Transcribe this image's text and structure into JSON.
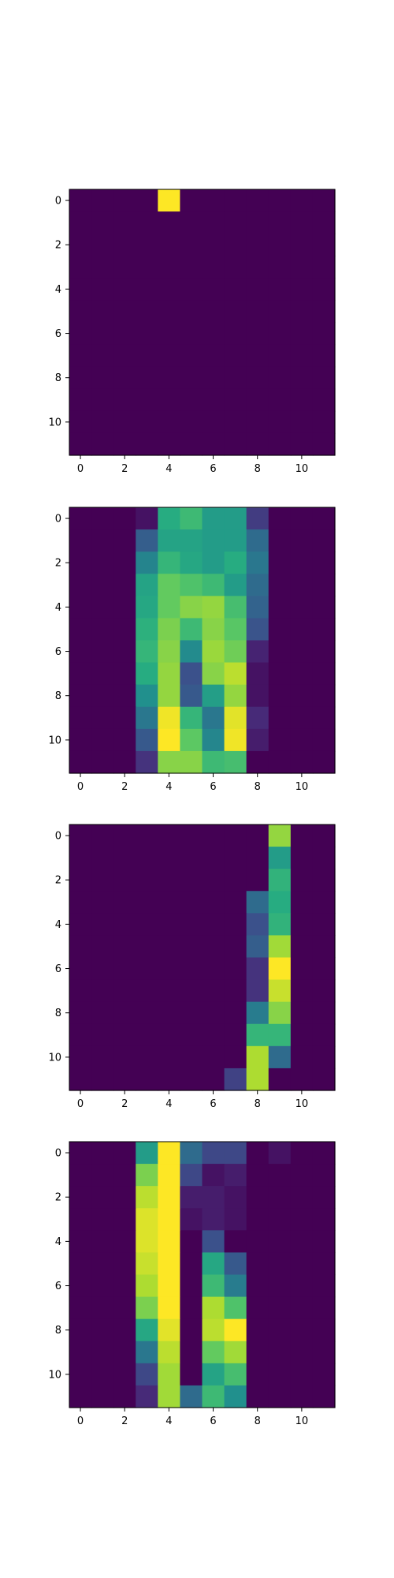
{
  "figure": {
    "background": "#ffffff"
  },
  "chart_data": [
    {
      "type": "heatmap",
      "colormap": "viridis",
      "value_range": [
        0,
        1
      ],
      "grid": false,
      "xlim": [
        -0.5,
        11.5
      ],
      "ylim": [
        11.5,
        -0.5
      ],
      "xticks": [
        0,
        2,
        4,
        6,
        8,
        10
      ],
      "yticks": [
        0,
        2,
        4,
        6,
        8,
        10
      ],
      "values": [
        [
          0,
          0,
          0,
          0,
          1,
          0,
          0,
          0,
          0,
          0,
          0,
          0
        ],
        [
          0,
          0,
          0,
          0,
          0,
          0,
          0,
          0,
          0,
          0,
          0,
          0
        ],
        [
          0,
          0,
          0,
          0,
          0,
          0,
          0,
          0,
          0,
          0,
          0,
          0
        ],
        [
          0,
          0,
          0,
          0,
          0,
          0,
          0,
          0,
          0,
          0,
          0,
          0
        ],
        [
          0,
          0,
          0,
          0,
          0,
          0,
          0,
          0,
          0,
          0,
          0,
          0
        ],
        [
          0,
          0,
          0,
          0,
          0,
          0,
          0,
          0,
          0,
          0,
          0,
          0
        ],
        [
          0,
          0,
          0,
          0,
          0,
          0,
          0,
          0,
          0,
          0,
          0,
          0
        ],
        [
          0,
          0,
          0,
          0,
          0,
          0,
          0,
          0,
          0,
          0,
          0,
          0
        ],
        [
          0,
          0,
          0,
          0,
          0,
          0,
          0,
          0,
          0,
          0,
          0,
          0
        ],
        [
          0,
          0,
          0,
          0,
          0,
          0,
          0,
          0,
          0,
          0,
          0,
          0
        ],
        [
          0,
          0,
          0,
          0,
          0,
          0,
          0,
          0,
          0,
          0,
          0,
          0
        ],
        [
          0,
          0,
          0,
          0,
          0,
          0,
          0,
          0,
          0,
          0,
          0,
          0
        ]
      ]
    },
    {
      "type": "heatmap",
      "colormap": "viridis",
      "value_range": [
        0,
        1
      ],
      "grid": false,
      "xlim": [
        -0.5,
        11.5
      ],
      "ylim": [
        11.5,
        -0.5
      ],
      "xticks": [
        0,
        2,
        4,
        6,
        8,
        10
      ],
      "yticks": [
        0,
        2,
        4,
        6,
        8,
        10
      ],
      "values": [
        [
          0,
          0,
          0,
          0.05,
          0.62,
          0.68,
          0.55,
          0.55,
          0.18,
          0,
          0,
          0
        ],
        [
          0,
          0,
          0,
          0.3,
          0.58,
          0.58,
          0.55,
          0.55,
          0.35,
          0,
          0,
          0
        ],
        [
          0,
          0,
          0,
          0.45,
          0.66,
          0.6,
          0.55,
          0.62,
          0.4,
          0,
          0,
          0
        ],
        [
          0,
          0,
          0,
          0.58,
          0.76,
          0.72,
          0.68,
          0.55,
          0.35,
          0,
          0,
          0
        ],
        [
          0,
          0,
          0,
          0.6,
          0.76,
          0.82,
          0.84,
          0.7,
          0.32,
          0,
          0,
          0
        ],
        [
          0,
          0,
          0,
          0.64,
          0.8,
          0.68,
          0.82,
          0.74,
          0.26,
          0,
          0,
          0
        ],
        [
          0,
          0,
          0,
          0.66,
          0.82,
          0.48,
          0.85,
          0.78,
          0.1,
          0,
          0,
          0
        ],
        [
          0,
          0,
          0,
          0.62,
          0.84,
          0.25,
          0.82,
          0.9,
          0.05,
          0,
          0,
          0
        ],
        [
          0,
          0,
          0,
          0.5,
          0.84,
          0.28,
          0.56,
          0.84,
          0.05,
          0,
          0,
          0
        ],
        [
          0,
          0,
          0,
          0.4,
          0.98,
          0.66,
          0.4,
          0.96,
          0.12,
          0,
          0,
          0
        ],
        [
          0,
          0,
          0,
          0.28,
          1.0,
          0.75,
          0.46,
          0.98,
          0.08,
          0,
          0,
          0
        ],
        [
          0,
          0,
          0,
          0.15,
          0.82,
          0.82,
          0.68,
          0.7,
          0,
          0,
          0,
          0
        ]
      ]
    },
    {
      "type": "heatmap",
      "colormap": "viridis",
      "value_range": [
        0,
        1
      ],
      "grid": false,
      "xlim": [
        -0.5,
        11.5
      ],
      "ylim": [
        11.5,
        -0.5
      ],
      "xticks": [
        0,
        2,
        4,
        6,
        8,
        10
      ],
      "yticks": [
        0,
        2,
        4,
        6,
        8,
        10
      ],
      "values": [
        [
          0,
          0,
          0,
          0,
          0,
          0,
          0,
          0,
          0,
          0.84,
          0,
          0
        ],
        [
          0,
          0,
          0,
          0,
          0,
          0,
          0,
          0,
          0,
          0.55,
          0,
          0
        ],
        [
          0,
          0,
          0,
          0,
          0,
          0,
          0,
          0,
          0,
          0.65,
          0,
          0
        ],
        [
          0,
          0,
          0,
          0,
          0,
          0,
          0,
          0,
          0.35,
          0.62,
          0,
          0
        ],
        [
          0,
          0,
          0,
          0,
          0,
          0,
          0,
          0,
          0.25,
          0.65,
          0,
          0
        ],
        [
          0,
          0,
          0,
          0,
          0,
          0,
          0,
          0,
          0.3,
          0.86,
          0,
          0
        ],
        [
          0,
          0,
          0,
          0,
          0,
          0,
          0,
          0,
          0.15,
          1.0,
          0,
          0
        ],
        [
          0,
          0,
          0,
          0,
          0,
          0,
          0,
          0,
          0.15,
          0.92,
          0,
          0
        ],
        [
          0,
          0,
          0,
          0,
          0,
          0,
          0,
          0,
          0.42,
          0.82,
          0,
          0
        ],
        [
          0,
          0,
          0,
          0,
          0,
          0,
          0,
          0,
          0.66,
          0.66,
          0,
          0
        ],
        [
          0,
          0,
          0,
          0,
          0,
          0,
          0,
          0,
          0.88,
          0.35,
          0,
          0
        ],
        [
          0,
          0,
          0,
          0,
          0,
          0,
          0,
          0.2,
          0.88,
          0,
          0,
          0
        ]
      ]
    },
    {
      "type": "heatmap",
      "colormap": "viridis",
      "value_range": [
        0,
        1
      ],
      "grid": false,
      "xlim": [
        -0.5,
        11.5
      ],
      "ylim": [
        11.5,
        -0.5
      ],
      "xticks": [
        0,
        2,
        4,
        6,
        8,
        10
      ],
      "yticks": [
        0,
        2,
        4,
        6,
        8,
        10
      ],
      "values": [
        [
          0,
          0,
          0,
          0.55,
          1.0,
          0.35,
          0.22,
          0.22,
          0,
          0.05,
          0,
          0
        ],
        [
          0,
          0,
          0,
          0.8,
          1.0,
          0.22,
          0.05,
          0.08,
          0,
          0,
          0,
          0
        ],
        [
          0,
          0,
          0,
          0.9,
          1.0,
          0.08,
          0.08,
          0.05,
          0,
          0,
          0,
          0
        ],
        [
          0,
          0,
          0,
          0.95,
          1.0,
          0.05,
          0.08,
          0.05,
          0,
          0,
          0,
          0
        ],
        [
          0,
          0,
          0,
          0.95,
          1.0,
          0,
          0.25,
          0,
          0,
          0,
          0,
          0
        ],
        [
          0,
          0,
          0,
          0.92,
          1.0,
          0,
          0.6,
          0.28,
          0,
          0,
          0,
          0
        ],
        [
          0,
          0,
          0,
          0.88,
          1.0,
          0,
          0.68,
          0.42,
          0,
          0,
          0,
          0
        ],
        [
          0,
          0,
          0,
          0.8,
          1.0,
          0,
          0.88,
          0.72,
          0,
          0,
          0,
          0
        ],
        [
          0,
          0,
          0,
          0.6,
          0.96,
          0,
          0.9,
          1.0,
          0,
          0,
          0,
          0
        ],
        [
          0,
          0,
          0,
          0.4,
          0.9,
          0,
          0.76,
          0.86,
          0,
          0,
          0,
          0
        ],
        [
          0,
          0,
          0,
          0.22,
          0.86,
          0,
          0.58,
          0.7,
          0,
          0,
          0,
          0
        ],
        [
          0,
          0,
          0,
          0.12,
          0.86,
          0.35,
          0.68,
          0.5,
          0,
          0,
          0,
          0
        ]
      ]
    }
  ]
}
